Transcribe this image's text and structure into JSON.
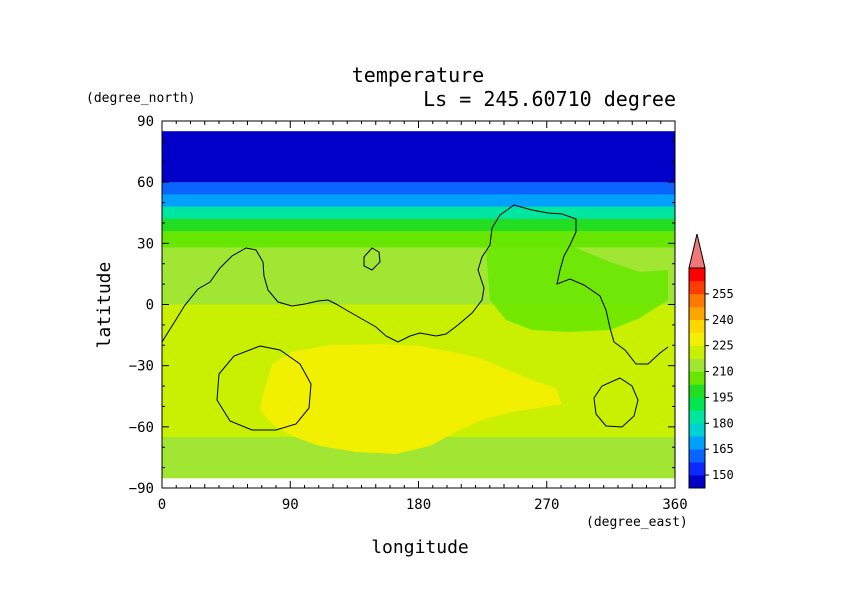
{
  "chart_data": {
    "type": "heatmap",
    "title": "temperature",
    "subtitle": "Ls = 245.60710 degree",
    "xlabel": "longitude",
    "ylabel": "latitude",
    "x_units": "(degree_east)",
    "y_units": "(degree_north)",
    "xlim": [
      0,
      360
    ],
    "ylim": [
      -90,
      90
    ],
    "x_ticks": [
      "0",
      "90",
      "180",
      "270",
      "360"
    ],
    "y_ticks": [
      "90",
      "60",
      "30",
      "0",
      "−30",
      "−60",
      "−90"
    ],
    "colorbar": {
      "labels": [
        "150",
        "165",
        "180",
        "195",
        "210",
        "225",
        "240",
        "255"
      ],
      "levels": [
        150,
        165,
        180,
        195,
        210,
        225,
        240,
        255
      ],
      "colors": [
        "#0000c8",
        "#0a28ff",
        "#0a64ff",
        "#00a0ff",
        "#00d2d2",
        "#00e6a0",
        "#00e650",
        "#22dd22",
        "#66e600",
        "#a0e632",
        "#c8f000",
        "#f0f000",
        "#ffd700",
        "#ffa500",
        "#ff7800",
        "#ff3c00",
        "#ff0000"
      ],
      "extend_color": "#f07878"
    },
    "field": {
      "lat_bands": [
        {
          "lat": [
            60,
            85
          ],
          "temp": 148
        },
        {
          "lat": [
            54,
            60
          ],
          "temp": 158
        },
        {
          "lat": [
            48,
            54
          ],
          "temp": 172
        },
        {
          "lat": [
            42,
            48
          ],
          "temp": 184
        },
        {
          "lat": [
            36,
            42
          ],
          "temp": 196
        },
        {
          "lat": [
            28,
            36
          ],
          "temp": 206
        },
        {
          "lat": [
            18,
            28
          ],
          "temp": 212
        },
        {
          "lat": [
            0,
            18
          ],
          "temp": 216
        },
        {
          "lat": [
            -25,
            0
          ],
          "temp": 219
        },
        {
          "lat": [
            -65,
            -25
          ],
          "temp": 222
        },
        {
          "lat": [
            -75,
            -65
          ],
          "temp": 217
        },
        {
          "lat": [
            -85,
            -75
          ],
          "temp": 210
        }
      ],
      "warm_region_temp": 226,
      "warm_core_temp": 230
    }
  }
}
